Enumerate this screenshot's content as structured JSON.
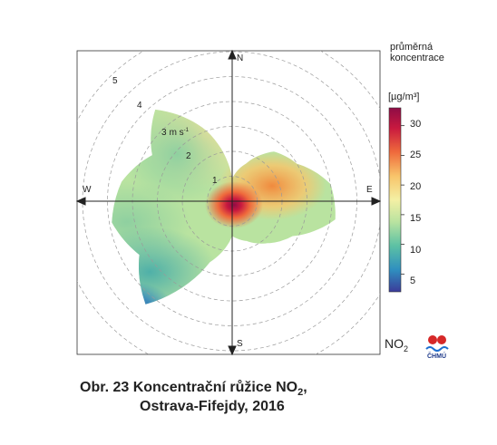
{
  "chart_data": {
    "type": "polar-heatmap",
    "title": "",
    "pollutant_label": "NO",
    "pollutant_sub": "2",
    "legend_title": [
      "průměrná",
      "koncentrace"
    ],
    "legend_unit": "[µg/m³]",
    "color_range": [
      2,
      33
    ],
    "colorbar_ticks": [
      5,
      10,
      15,
      20,
      25,
      30
    ],
    "colors": [
      "#3b3b9a",
      "#2f8fbf",
      "#5cc1a4",
      "#b9e3a0",
      "#f4f0a4",
      "#f8c46a",
      "#ef6a3c",
      "#c8193f",
      "#8f0c46"
    ],
    "directions": [
      "N",
      "E",
      "S",
      "W"
    ],
    "radial_labels": [
      "1",
      "2",
      "3 m s-1",
      "4",
      "5"
    ],
    "radial_ticks": [
      1,
      2,
      3,
      4,
      5
    ],
    "wind_speed_max": 5.6,
    "radial_unit": "m s",
    "radial_unit_sup": "-1",
    "grid": true,
    "sector_extent": [
      {
        "dir": 0,
        "max_ws": 0.9
      },
      {
        "dir": 20,
        "max_ws": 1.6
      },
      {
        "dir": 40,
        "max_ws": 2.6
      },
      {
        "dir": 60,
        "max_ws": 3.0
      },
      {
        "dir": 80,
        "max_ws": 4.0
      },
      {
        "dir": 100,
        "max_ws": 4.2
      },
      {
        "dir": 120,
        "max_ws": 2.8
      },
      {
        "dir": 140,
        "max_ws": 2.2
      },
      {
        "dir": 160,
        "max_ws": 1.7
      },
      {
        "dir": 180,
        "max_ws": 1.4
      },
      {
        "dir": 200,
        "max_ws": 2.6
      },
      {
        "dir": 220,
        "max_ws": 5.4
      },
      {
        "dir": 240,
        "max_ws": 4.3
      },
      {
        "dir": 260,
        "max_ws": 4.9
      },
      {
        "dir": 280,
        "max_ws": 4.5
      },
      {
        "dir": 300,
        "max_ws": 3.7
      },
      {
        "dir": 320,
        "max_ws": 4.8
      },
      {
        "dir": 340,
        "max_ws": 3.0
      },
      {
        "dir": 360,
        "max_ws": 0.9
      }
    ],
    "hotspots": [
      {
        "dir": 0,
        "ws": 0.0,
        "value": 33
      },
      {
        "dir": 90,
        "ws": 1.6,
        "value": 25
      },
      {
        "dir": 70,
        "ws": 2.2,
        "value": 22
      },
      {
        "dir": 10,
        "ws": 1.0,
        "value": 18
      },
      {
        "dir": 330,
        "ws": 3.5,
        "value": 15
      },
      {
        "dir": 270,
        "ws": 2.5,
        "value": 13
      },
      {
        "dir": 225,
        "ws": 4.5,
        "value": 3
      },
      {
        "dir": 180,
        "ws": 1.2,
        "value": 15
      }
    ]
  },
  "caption": {
    "line1_prefix": "Obr. 23  Koncentrační růžice NO",
    "line1_sub": "2",
    "line1_suffix": ",",
    "line2": "Ostrava-Fifejdy, 2016"
  },
  "logo": {
    "text": "ČHMÚ"
  }
}
